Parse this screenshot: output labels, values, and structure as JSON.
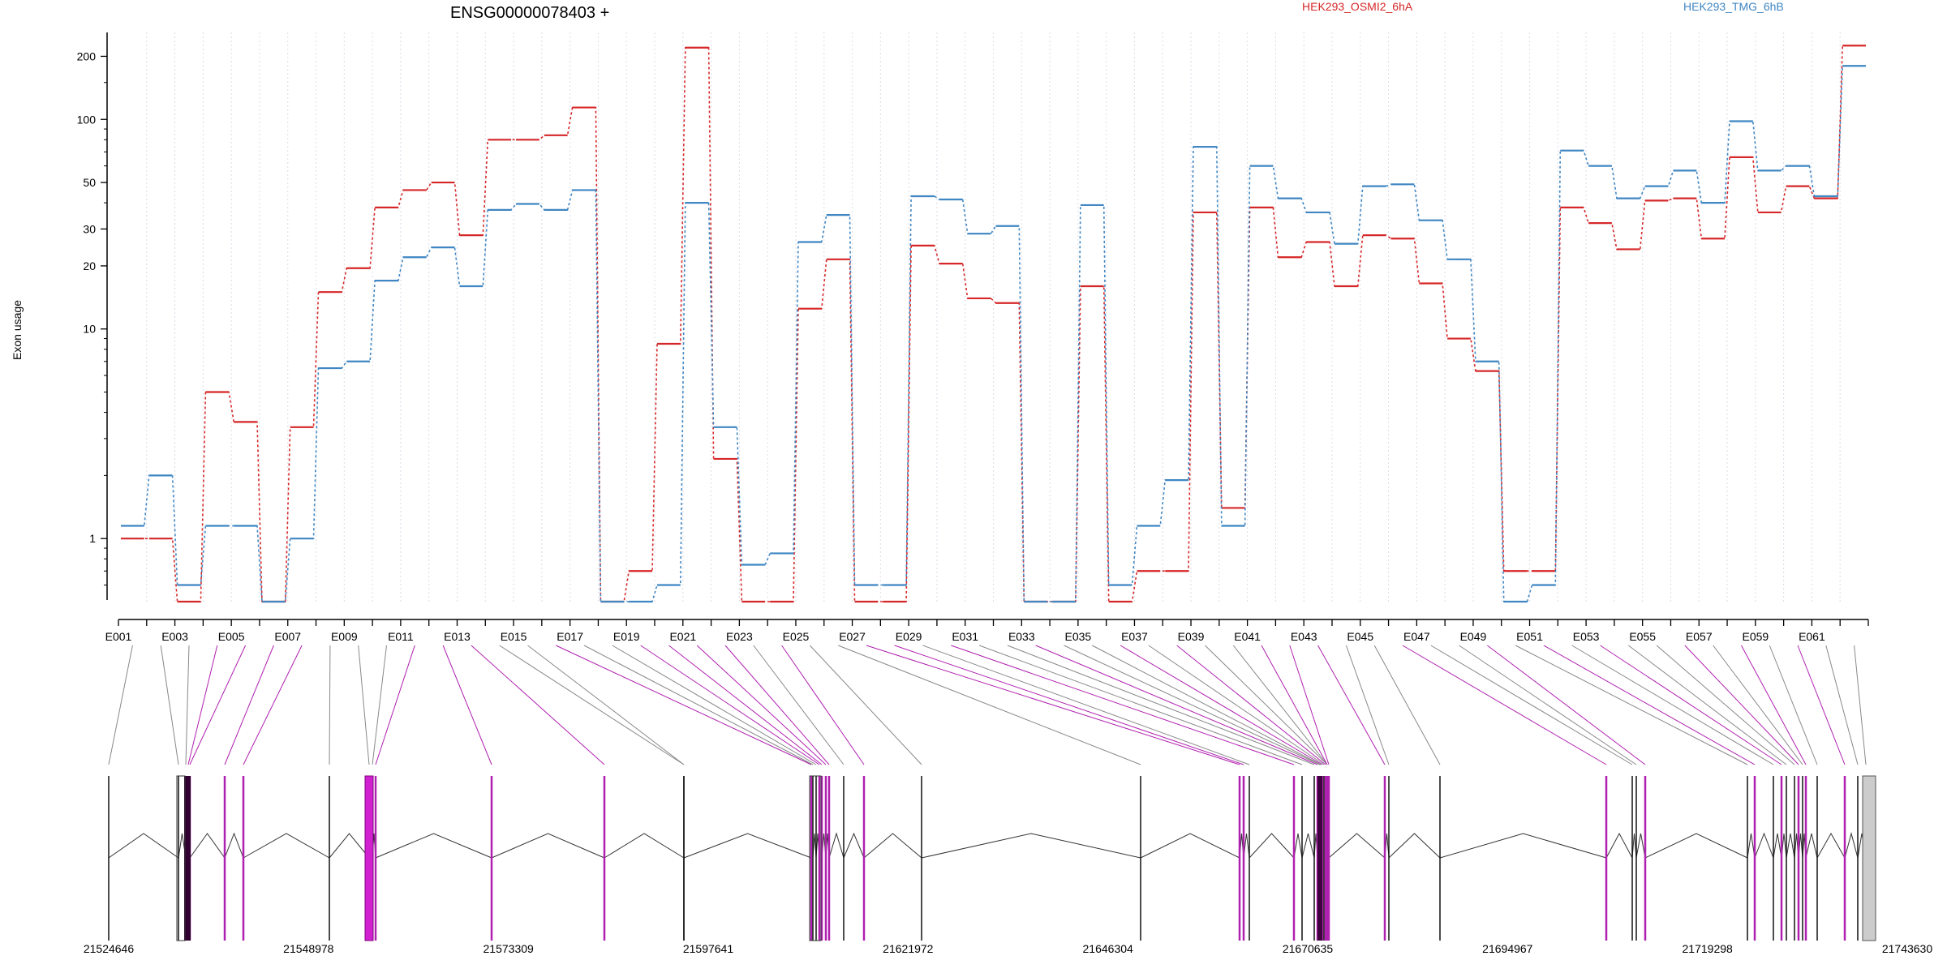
{
  "chart_data": {
    "type": "line",
    "title": "ENSG00000078403 +",
    "ylabel": "Exon usage",
    "y_scale": "log",
    "ylim": [
      0.5,
      260
    ],
    "y_ticks": [
      1,
      10,
      20,
      30,
      50,
      100,
      200
    ],
    "grid": "vertical dotted gridlines",
    "legend_position": "top",
    "exon_labels": [
      "E001",
      "E003",
      "E005",
      "E007",
      "E009",
      "E011",
      "E013",
      "E015",
      "E017",
      "E019",
      "E021",
      "E023",
      "E025",
      "E027",
      "E029",
      "E031",
      "E033",
      "E035",
      "E037",
      "E039",
      "E041",
      "E043",
      "E045",
      "E047",
      "E049",
      "E051",
      "E053",
      "E055",
      "E057",
      "E059",
      "E061"
    ],
    "genomic_ticks": [
      "21524646",
      "21548978",
      "21573309",
      "21597641",
      "21621972",
      "21646304",
      "21670635",
      "21694967",
      "21719298",
      "21743630"
    ],
    "series": [
      {
        "name": "HEK293_OSMI2_6hA",
        "color": "#d62728",
        "values": [
          1,
          1,
          0.5,
          5,
          3.6,
          0.5,
          3.4,
          15,
          19.5,
          38,
          46,
          50,
          28,
          80,
          80,
          84,
          114,
          0.5,
          0.7,
          8.5,
          220,
          2.4,
          0.5,
          0.5,
          12.5,
          21.5,
          0.5,
          0.5,
          25,
          20.5,
          14,
          13.3,
          0.5,
          0.5,
          16,
          0.5,
          0.7,
          0.7,
          36,
          1.4,
          38,
          22,
          26,
          16,
          28,
          27,
          16.5,
          9,
          6.3,
          0.7,
          0.7,
          38,
          32,
          24,
          41,
          42,
          27,
          66,
          36,
          48,
          42,
          225
        ]
      },
      {
        "name": "HEK293_TMG_6hB",
        "color": "#3f86c2",
        "values": [
          1.15,
          2,
          0.6,
          1.15,
          1.15,
          0.5,
          1,
          6.5,
          7,
          17,
          22,
          24.5,
          16,
          37,
          39.5,
          37,
          46,
          0.5,
          0.5,
          0.6,
          40,
          3.4,
          0.75,
          0.85,
          26,
          35,
          0.6,
          0.6,
          43,
          41.5,
          28.5,
          31,
          0.5,
          0.5,
          39,
          0.6,
          1.15,
          1.9,
          74,
          1.15,
          60,
          42,
          36,
          25.5,
          48,
          49,
          33,
          21.5,
          7,
          0.5,
          0.6,
          71,
          60,
          42,
          48,
          57,
          40,
          98,
          57,
          60,
          43,
          180
        ]
      }
    ]
  }
}
